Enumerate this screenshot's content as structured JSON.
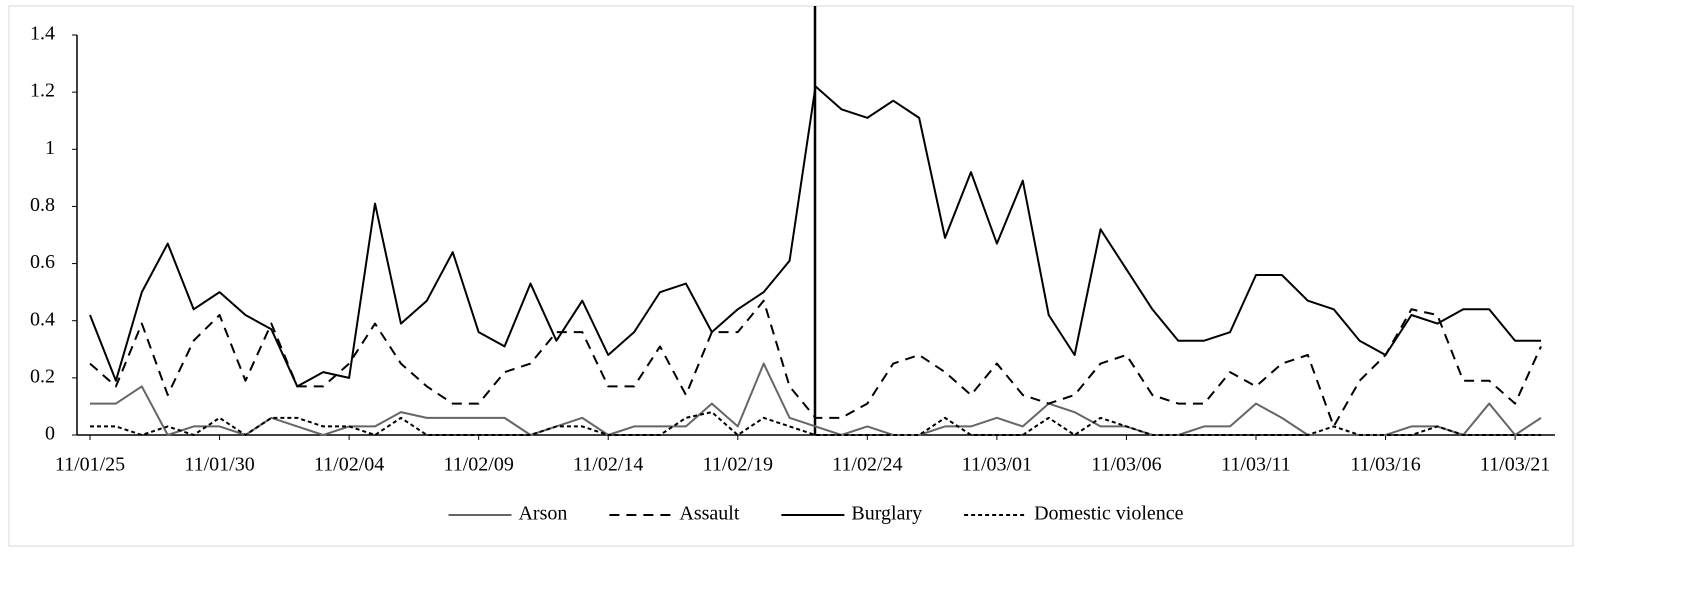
{
  "chart_data": {
    "type": "line",
    "categories": [
      "11/01/25",
      null,
      null,
      null,
      null,
      "11/01/30",
      null,
      null,
      null,
      null,
      "11/02/04",
      null,
      null,
      null,
      null,
      "11/02/09",
      null,
      null,
      null,
      null,
      "11/02/14",
      null,
      null,
      null,
      null,
      "11/02/19",
      null,
      null,
      null,
      null,
      "11/02/24",
      null,
      null,
      null,
      null,
      "11/03/01",
      null,
      null,
      null,
      null,
      "11/03/06",
      null,
      null,
      null,
      null,
      "11/03/11",
      null,
      null,
      null,
      null,
      "11/03/16",
      null,
      null,
      null,
      null,
      "11/03/21",
      null
    ],
    "series": [
      {
        "name": "Arson",
        "color": "#666666",
        "dash": "solid",
        "values": [
          0.11,
          0.11,
          0.17,
          0,
          0.03,
          0.03,
          0,
          0.06,
          0.03,
          0,
          0.03,
          0.03,
          0.08,
          0.06,
          0.06,
          0.06,
          0.06,
          0,
          0.03,
          0.06,
          0,
          0.03,
          0.03,
          0.03,
          0.11,
          0.03,
          0.25,
          0.06,
          0.03,
          0,
          0.03,
          0,
          0,
          0.03,
          0.03,
          0.06,
          0.03,
          0.11,
          0.08,
          0.03,
          0.03,
          0,
          0,
          0.03,
          0.03,
          0.11,
          0.06,
          0,
          0,
          0,
          0,
          0.03,
          0.03,
          0,
          0.11,
          0,
          0.06
        ]
      },
      {
        "name": "Assault",
        "color": "#000000",
        "dash": "long",
        "values": [
          0.25,
          0.17,
          0.39,
          0.14,
          0.33,
          0.42,
          0.19,
          0.39,
          0.17,
          0.17,
          0.25,
          0.39,
          0.25,
          0.17,
          0.11,
          0.11,
          0.22,
          0.25,
          0.36,
          0.36,
          0.17,
          0.17,
          0.31,
          0.14,
          0.36,
          0.36,
          0.47,
          0.17,
          0.06,
          0.06,
          0.11,
          0.25,
          0.28,
          0.22,
          0.14,
          0.25,
          0.14,
          0.11,
          0.14,
          0.25,
          0.28,
          0.14,
          0.11,
          0.11,
          0.22,
          0.17,
          0.25,
          0.28,
          0.03,
          0.19,
          0.28,
          0.44,
          0.42,
          0.19,
          0.19,
          0.11,
          0.31
        ]
      },
      {
        "name": "Burglary",
        "color": "#000000",
        "dash": "solid",
        "values": [
          0.42,
          0.19,
          0.5,
          0.67,
          0.44,
          0.5,
          0.42,
          0.37,
          0.17,
          0.22,
          0.2,
          0.81,
          0.39,
          0.47,
          0.64,
          0.36,
          0.31,
          0.53,
          0.33,
          0.47,
          0.28,
          0.36,
          0.5,
          0.53,
          0.36,
          0.44,
          0.5,
          0.61,
          1.22,
          1.14,
          1.11,
          1.17,
          1.11,
          0.69,
          0.92,
          0.67,
          0.89,
          0.42,
          0.28,
          0.72,
          0.58,
          0.44,
          0.33,
          0.33,
          0.36,
          0.56,
          0.56,
          0.47,
          0.44,
          0.33,
          0.28,
          0.42,
          0.39,
          0.44,
          0.44,
          0.33,
          0.33
        ]
      },
      {
        "name": "Domestic violence",
        "color": "#000000",
        "dash": "short",
        "values": [
          0.03,
          0.03,
          0,
          0.03,
          0,
          0.06,
          0,
          0.06,
          0.06,
          0.03,
          0.03,
          0,
          0.06,
          0,
          0,
          0,
          0,
          0,
          0.03,
          0.03,
          0,
          0,
          0,
          0.06,
          0.08,
          0,
          0.06,
          0.03,
          0,
          0,
          0,
          0,
          0,
          0.06,
          0,
          0,
          0,
          0.06,
          0,
          0.06,
          0.03,
          0,
          0,
          0,
          0,
          0,
          0,
          0,
          0.03,
          0,
          0,
          0,
          0.03,
          0,
          0,
          0,
          0
        ]
      }
    ],
    "ylim": [
      0,
      1.4
    ],
    "yticks": [
      0,
      0.2,
      0.4,
      0.6,
      0.8,
      1,
      1.2,
      1.4
    ],
    "grid": false,
    "legend": "bottom"
  }
}
